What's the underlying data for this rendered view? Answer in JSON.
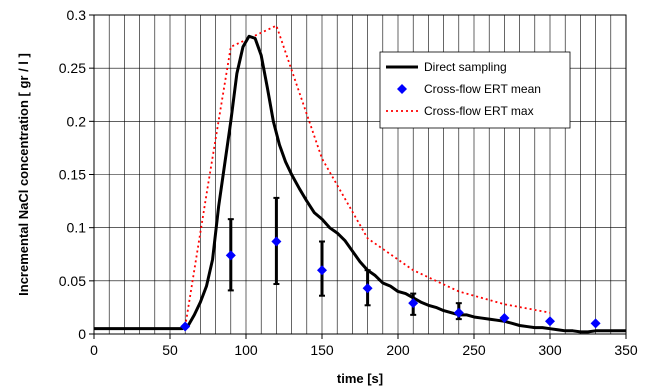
{
  "chart_data": {
    "type": "line",
    "title": "",
    "xlabel": "time [s]",
    "ylabel": "Incremental NaCl concentration [ gr / l ]",
    "xlim": [
      0,
      350
    ],
    "ylim": [
      0,
      0.3
    ],
    "xticks": [
      "0",
      "50",
      "100",
      "150",
      "200",
      "250",
      "300",
      "350"
    ],
    "yticks": [
      "0",
      "0.05",
      "0.1",
      "0.15",
      "0.2",
      "0.25",
      "0.3"
    ],
    "grid": true,
    "legend": "top-right",
    "series": [
      {
        "name": "Direct sampling",
        "color": "#000000",
        "style": "solid",
        "x": [
          0,
          20,
          40,
          58,
          62,
          66,
          70,
          74,
          78,
          82,
          86,
          90,
          94,
          98,
          102,
          106,
          110,
          114,
          118,
          122,
          126,
          130,
          135,
          140,
          145,
          150,
          155,
          160,
          165,
          170,
          175,
          180,
          185,
          190,
          195,
          200,
          205,
          210,
          215,
          220,
          225,
          230,
          235,
          240,
          245,
          250,
          255,
          260,
          265,
          270,
          275,
          280,
          285,
          290,
          295,
          300,
          305,
          310,
          315,
          320,
          325,
          330,
          340,
          350
        ],
        "y": [
          0.005,
          0.005,
          0.005,
          0.005,
          0.008,
          0.018,
          0.03,
          0.045,
          0.07,
          0.12,
          0.16,
          0.2,
          0.245,
          0.27,
          0.28,
          0.278,
          0.262,
          0.232,
          0.2,
          0.178,
          0.162,
          0.15,
          0.137,
          0.125,
          0.114,
          0.108,
          0.1,
          0.095,
          0.088,
          0.078,
          0.068,
          0.06,
          0.055,
          0.048,
          0.045,
          0.04,
          0.038,
          0.034,
          0.03,
          0.027,
          0.025,
          0.022,
          0.02,
          0.018,
          0.018,
          0.016,
          0.015,
          0.014,
          0.013,
          0.012,
          0.01,
          0.008,
          0.007,
          0.006,
          0.006,
          0.005,
          0.004,
          0.003,
          0.003,
          0.002,
          0.002,
          0.003,
          0.003,
          0.003
        ]
      },
      {
        "name": "Cross-flow ERT mean",
        "color": "#0000ff",
        "style": "marker",
        "x": [
          60,
          90,
          120,
          150,
          180,
          210,
          240,
          270,
          300,
          330
        ],
        "y": [
          0.007,
          0.074,
          0.087,
          0.06,
          0.043,
          0.029,
          0.02,
          0.015,
          0.012,
          0.01
        ],
        "error_low": [
          null,
          0.041,
          0.047,
          0.036,
          0.027,
          0.018,
          0.014,
          null,
          null,
          null
        ],
        "error_high": [
          null,
          0.108,
          0.128,
          0.087,
          0.06,
          0.038,
          0.029,
          null,
          null,
          null
        ]
      },
      {
        "name": "Cross-flow ERT max",
        "color": "#ff0000",
        "style": "dotted",
        "x": [
          60,
          75,
          90,
          120,
          150,
          180,
          210,
          240,
          270,
          300
        ],
        "y": [
          0.007,
          0.14,
          0.27,
          0.29,
          0.165,
          0.09,
          0.06,
          0.04,
          0.028,
          0.02
        ]
      }
    ]
  }
}
